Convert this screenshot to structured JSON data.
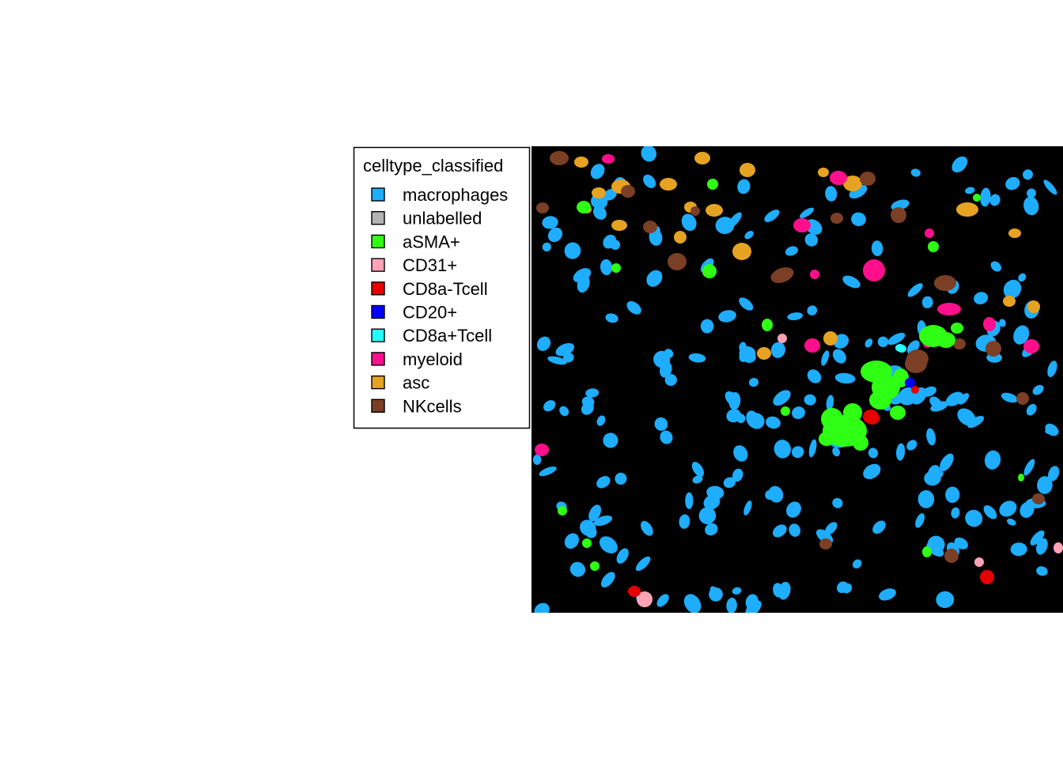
{
  "chart_data": {
    "type": "segmentation-map",
    "legend": {
      "title": "celltype_classified",
      "placement": "left",
      "entries": [
        {
          "label": "macrophages",
          "color": "#1EADFF"
        },
        {
          "label": "unlabelled",
          "color": "#B3B3B3"
        },
        {
          "label": "aSMA+",
          "color": "#2EFF14"
        },
        {
          "label": "CD31+",
          "color": "#FFA3B5"
        },
        {
          "label": "CD8a-Tcell",
          "color": "#E60000"
        },
        {
          "label": "CD20+",
          "color": "#0000FF"
        },
        {
          "label": "CD8a+Tcell",
          "color": "#25FFFF"
        },
        {
          "label": "myeloid",
          "color": "#FF0F8C"
        },
        {
          "label": "asc",
          "color": "#E6A322"
        },
        {
          "label": "NKcells",
          "color": "#7B3F25"
        }
      ]
    },
    "background_color": "#000000"
  }
}
